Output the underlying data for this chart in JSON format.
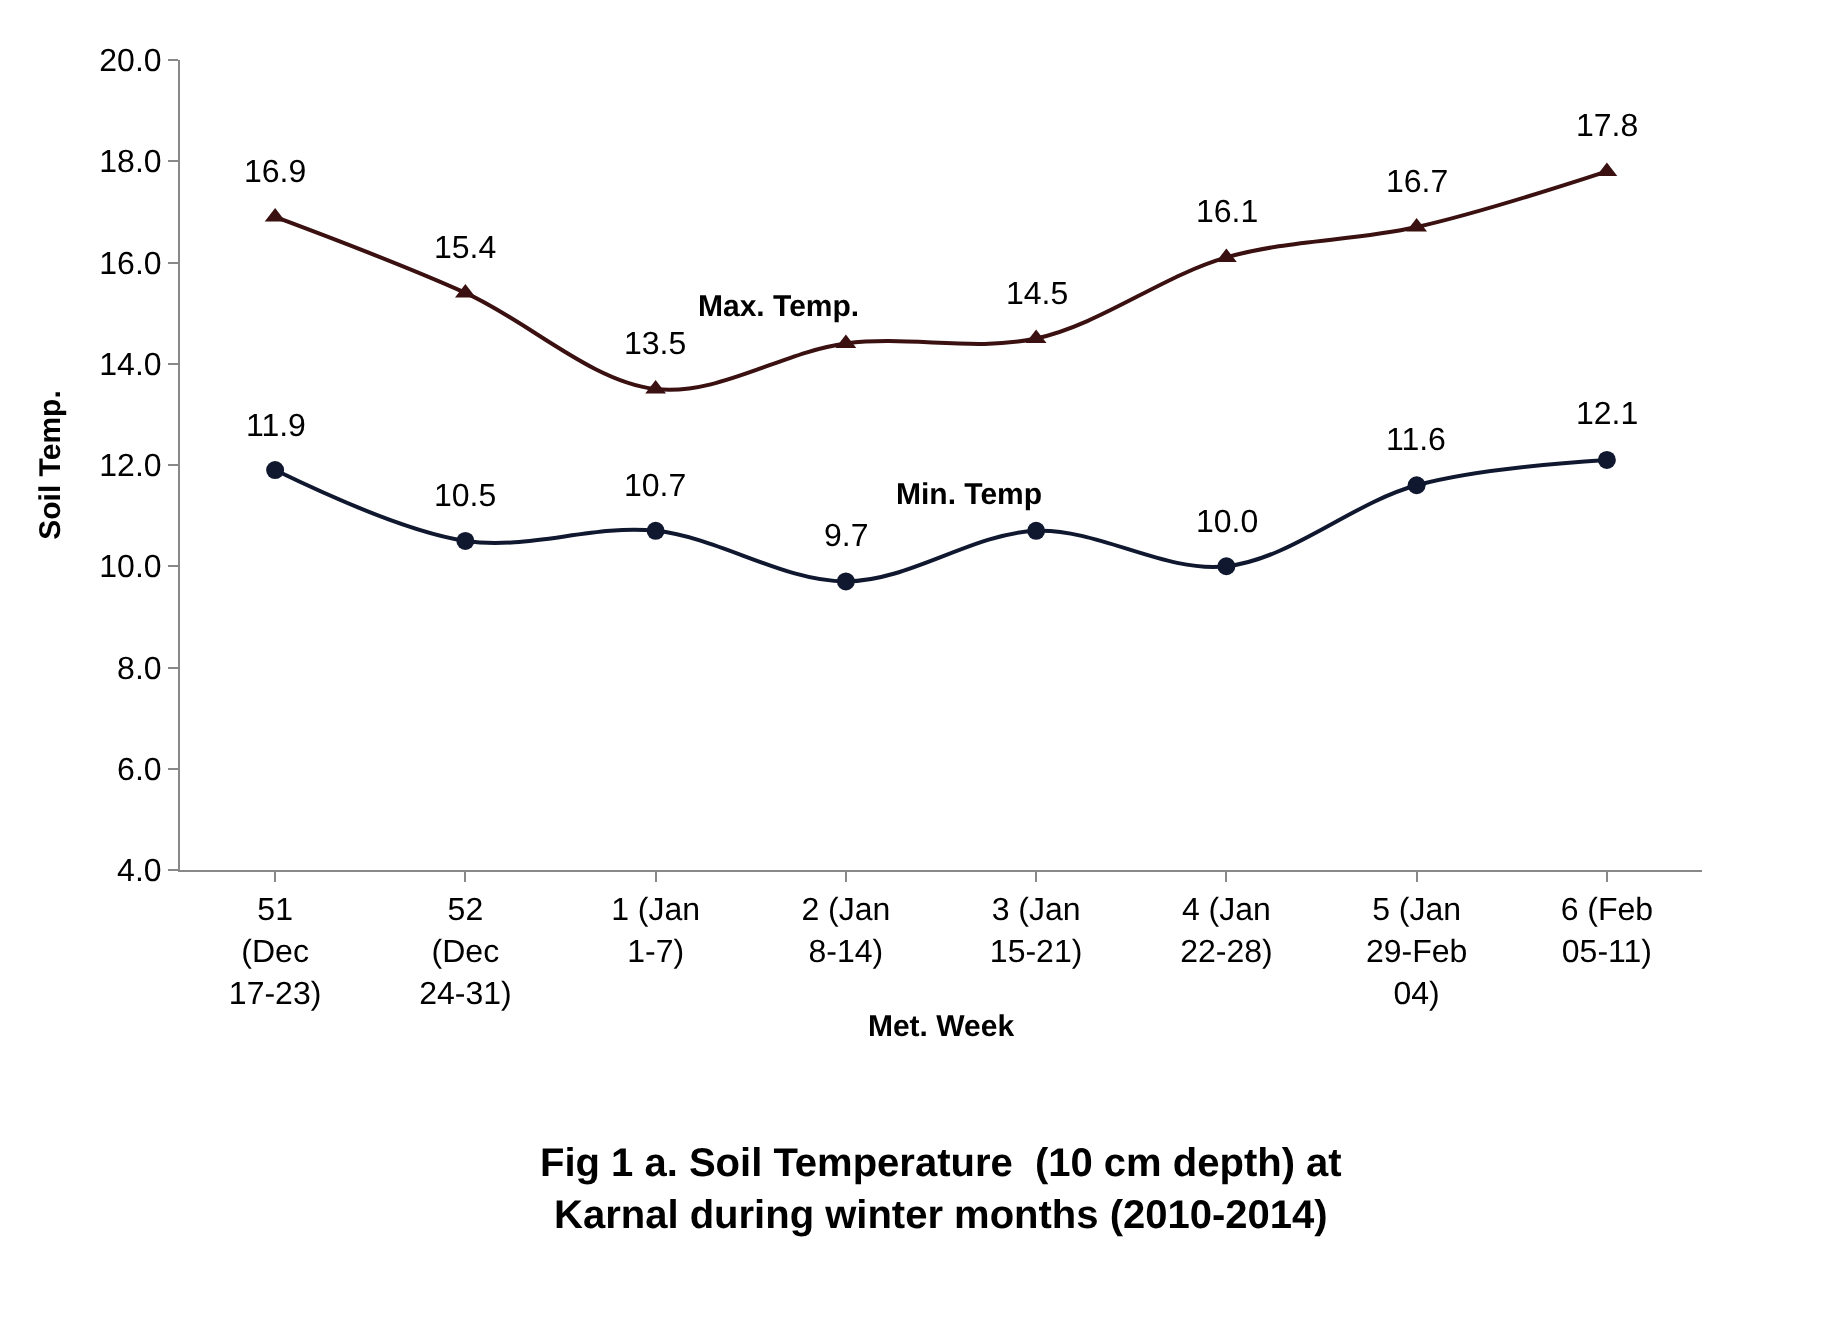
{
  "chart_data": {
    "type": "line",
    "title": "Fig 1 a. Soil Temperature  (10 cm depth) at Karnal during winter months (2010-2014)",
    "xlabel": "Met. Week",
    "ylabel": "Soil Temp.",
    "categories": [
      "51 (Dec 17-23)",
      "52 (Dec 24-31)",
      "1 (Jan 1-7)",
      "2 (Jan 8-14)",
      "3 (Jan 15-21)",
      "4 (Jan 22-28)",
      "5 (Jan 29-Feb 04)",
      "6 (Feb 05-11)"
    ],
    "series": [
      {
        "name": "Max. Temp.",
        "color": "#3a1010",
        "marker": "triangle",
        "values": [
          16.9,
          15.4,
          13.5,
          14.4,
          14.5,
          16.1,
          16.7,
          17.8
        ],
        "value_labels": [
          "16.9",
          "15.4",
          "13.5",
          null,
          "14.5",
          "16.1",
          "16.7",
          "17.8"
        ]
      },
      {
        "name": "Min. Temp",
        "color": "#101830",
        "marker": "circle",
        "values": [
          11.9,
          10.5,
          10.7,
          9.7,
          10.7,
          10.0,
          11.6,
          12.1
        ],
        "value_labels": [
          "11.9",
          "10.5",
          "10.7",
          "9.7",
          null,
          "10.0",
          "11.6",
          "12.1"
        ]
      }
    ],
    "ylim": [
      4.0,
      20.0
    ],
    "yticks": [
      {
        "value": 4,
        "label": "4.0"
      },
      {
        "value": 6,
        "label": "6.0"
      },
      {
        "value": 8,
        "label": "8.0"
      },
      {
        "value": 10,
        "label": "10.0"
      },
      {
        "value": 12,
        "label": "12.0"
      },
      {
        "value": 14,
        "label": "14.0"
      },
      {
        "value": 16,
        "label": "16.0"
      },
      {
        "value": 18,
        "label": "18.0"
      },
      {
        "value": 20,
        "label": "20.0"
      }
    ],
    "legend": false
  }
}
